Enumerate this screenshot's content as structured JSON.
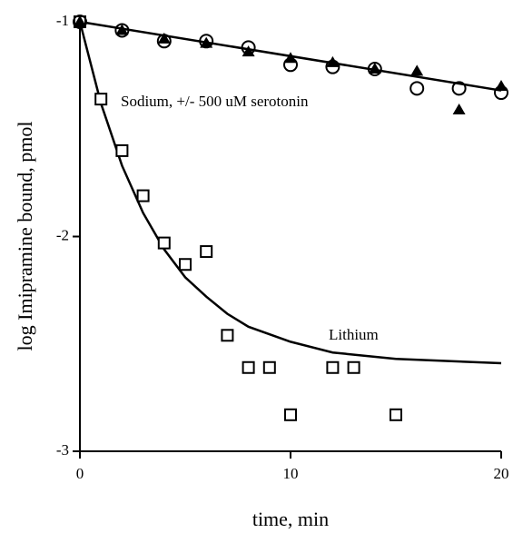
{
  "chart_data": {
    "type": "scatter",
    "x_label": "time, min",
    "y_label": "log Imipramine bound, pmol",
    "xlim": [
      0,
      20
    ],
    "ylim": [
      -3,
      -1
    ],
    "xticks": [
      0,
      10,
      20
    ],
    "yticks": [
      -1,
      -2,
      -3
    ],
    "annotations": [
      "Sodium, +/- 500 uM serotonin",
      "Lithium"
    ],
    "series": [
      {
        "marker": "square",
        "color": "#000000",
        "x": [
          0,
          1,
          2,
          3,
          4,
          5,
          6,
          7,
          8,
          9,
          10,
          12,
          13,
          15
        ],
        "values": [
          -1,
          -1.36,
          -1.6,
          -1.81,
          -2.03,
          -2.13,
          -2.07,
          -2.46,
          -2.61,
          -2.61,
          -2.83,
          -2.61,
          -2.61,
          -2.83
        ]
      },
      {
        "marker": "circle",
        "color": "#000000",
        "x": [
          0,
          2,
          4,
          6,
          8,
          10,
          12,
          14,
          16,
          18,
          20
        ],
        "values": [
          -1,
          -1.04,
          -1.09,
          -1.09,
          -1.12,
          -1.2,
          -1.21,
          -1.22,
          -1.31,
          -1.31,
          -1.33
        ]
      },
      {
        "marker": "triangle",
        "color": "#000000",
        "x": [
          0,
          2,
          4,
          6,
          8,
          10,
          12,
          14,
          16,
          18,
          20
        ],
        "values": [
          -1,
          -1.04,
          -1.08,
          -1.1,
          -1.14,
          -1.17,
          -1.19,
          -1.22,
          -1.23,
          -1.41,
          -1.3
        ]
      }
    ],
    "fits": [
      {
        "x": [
          0,
          20
        ],
        "values": [
          -1,
          -1.32
        ]
      },
      {
        "x": [
          0,
          1,
          2,
          3,
          4,
          5,
          6,
          7,
          8,
          10,
          12,
          15,
          20
        ],
        "values": [
          -1,
          -1.38,
          -1.67,
          -1.89,
          -2.06,
          -2.19,
          -2.28,
          -2.36,
          -2.42,
          -2.49,
          -2.54,
          -2.57,
          -2.59
        ]
      }
    ]
  }
}
